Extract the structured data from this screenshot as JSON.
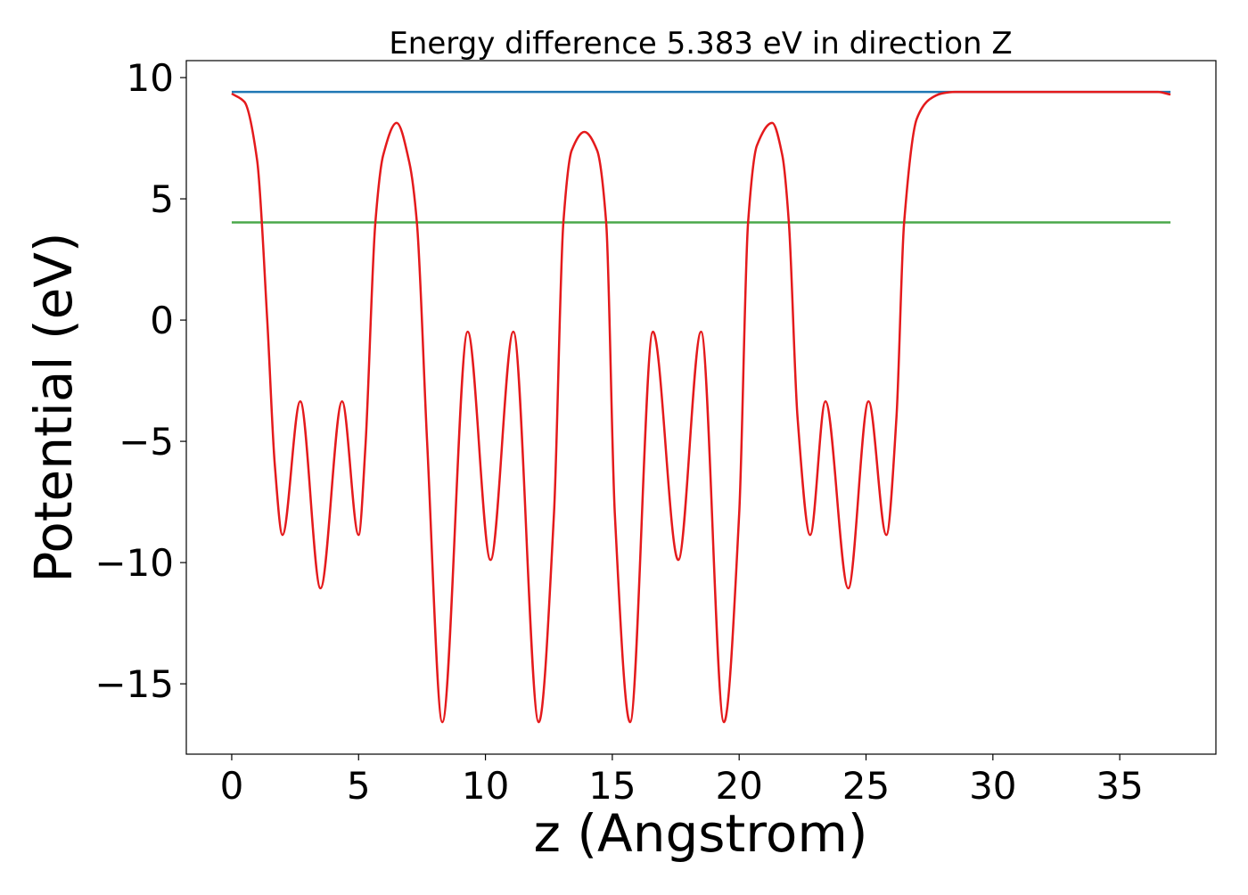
{
  "chart_data": {
    "type": "line",
    "title": "Energy difference 5.383 eV in direction Z",
    "xlabel": "z (Angstrom)",
    "ylabel": "Potential (eV)",
    "xlim": [
      -1.79,
      38.79
    ],
    "ylim": [
      -17.9,
      10.7
    ],
    "xticks": [
      0,
      5,
      10,
      15,
      20,
      25,
      30,
      35
    ],
    "yticks": [
      {
        "value": -15,
        "label": "−15"
      },
      {
        "value": -10,
        "label": "−10"
      },
      {
        "value": -5,
        "label": "−5"
      },
      0,
      5,
      10
    ],
    "series": [
      {
        "color": "#1f77b4",
        "x": [
          0,
          37
        ],
        "values": [
          9.41,
          9.41
        ]
      },
      {
        "color": "#4aa84a",
        "x": [
          0,
          37
        ],
        "values": [
          4.027,
          4.027
        ]
      },
      {
        "color": "#e41a1c",
        "x": [
          0,
          0.5,
          1.0,
          1.4,
          1.7,
          2.0,
          2.7,
          3.5,
          4.35,
          5.0,
          5.27,
          5.66,
          5.97,
          6.5,
          7.0,
          7.3,
          7.7,
          8.3,
          9.3,
          10.2,
          11.1,
          12.1,
          12.7,
          13.07,
          13.4,
          13.9,
          14.4,
          14.76,
          15.1,
          15.7,
          16.6,
          17.6,
          18.5,
          19.4,
          20.0,
          20.35,
          20.7,
          21.3,
          21.7,
          21.96,
          22.3,
          22.8,
          23.4,
          24.3,
          25.1,
          25.8,
          26.2,
          26.5,
          27.0,
          27.5,
          28.0,
          28.5,
          36.5,
          37
        ],
        "values": [
          9.34,
          9.0,
          6.6,
          0,
          -6,
          -8.86,
          -3.35,
          -11.06,
          -3.35,
          -8.86,
          -5.2,
          4,
          6.8,
          8.13,
          6.5,
          4,
          -5,
          -16.58,
          -0.48,
          -9.89,
          -0.48,
          -16.58,
          -8,
          4,
          7,
          7.76,
          7,
          4,
          -8,
          -16.58,
          -0.48,
          -9.89,
          -0.48,
          -16.58,
          -8,
          4,
          7.2,
          8.13,
          6.8,
          4,
          -4,
          -8.86,
          -3.35,
          -11.06,
          -3.35,
          -8.86,
          -4,
          4,
          8.3,
          9.1,
          9.35,
          9.41,
          9.41,
          9.3
        ]
      }
    ]
  }
}
